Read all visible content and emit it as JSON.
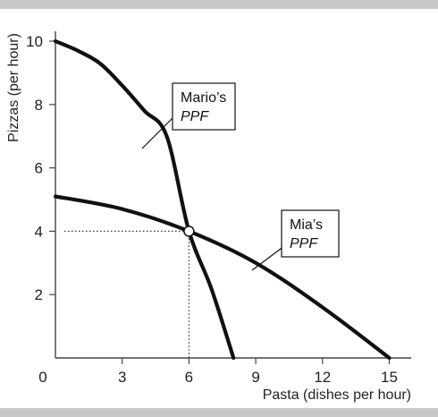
{
  "chart_data": {
    "type": "line",
    "xlabel": "Pasta (dishes per hour)",
    "ylabel": "Pizzas (per hour)",
    "xlim": [
      0,
      16
    ],
    "ylim": [
      0,
      10.4
    ],
    "xticks": [
      0,
      3,
      6,
      9,
      12,
      15
    ],
    "yticks": [
      2,
      4,
      6,
      8,
      10
    ],
    "grid": false,
    "series": [
      {
        "name": "Mario's PPF",
        "label_line1": "Mario’s",
        "label_line2": "PPF",
        "x": [
          0,
          1,
          2,
          3,
          4,
          5,
          6,
          7,
          8
        ],
        "y": [
          10,
          9.7,
          9.3,
          8.6,
          7.8,
          7.0,
          4.0,
          2.2,
          0
        ]
      },
      {
        "name": "Mia's PPF",
        "label_line1": "Mia’s",
        "label_line2": "PPF",
        "x": [
          0,
          3,
          6,
          9,
          12,
          15
        ],
        "y": [
          5.1,
          4.7,
          4.0,
          3.0,
          1.6,
          0
        ]
      }
    ],
    "intersection": {
      "x": 6,
      "y": 4
    },
    "colors": {
      "curve": "#111111",
      "frame": "#c8c8c8",
      "background": "#ffffff"
    }
  }
}
